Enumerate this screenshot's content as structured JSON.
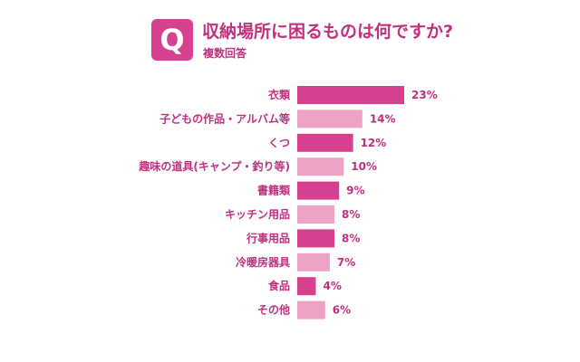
{
  "header": {
    "badge_letter": "Q",
    "title": "収納場所に困るものは何ですか?",
    "subtitle": "複数回答"
  },
  "colors": {
    "dark": "#d6408f",
    "light": "#eca3c6",
    "text": "#c0307e"
  },
  "chart_data": {
    "type": "bar",
    "orientation": "horizontal",
    "categories": [
      "衣類",
      "子どもの作品・アルバム等",
      "くつ",
      "趣味の道具(キャンプ・釣り等)",
      "書籍類",
      "キッチン用品",
      "行事用品",
      "冷暖房器具",
      "食品",
      "その他"
    ],
    "values": [
      23,
      14,
      12,
      10,
      9,
      8,
      8,
      7,
      4,
      6
    ],
    "value_labels": [
      "23%",
      "14%",
      "12%",
      "10%",
      "9%",
      "8%",
      "8%",
      "7%",
      "4%",
      "6%"
    ],
    "bar_styles": [
      "dark",
      "light",
      "dark",
      "light",
      "dark",
      "light",
      "dark",
      "light",
      "dark",
      "light"
    ],
    "xlim": [
      0,
      23
    ],
    "grid": false,
    "legend": "none"
  }
}
